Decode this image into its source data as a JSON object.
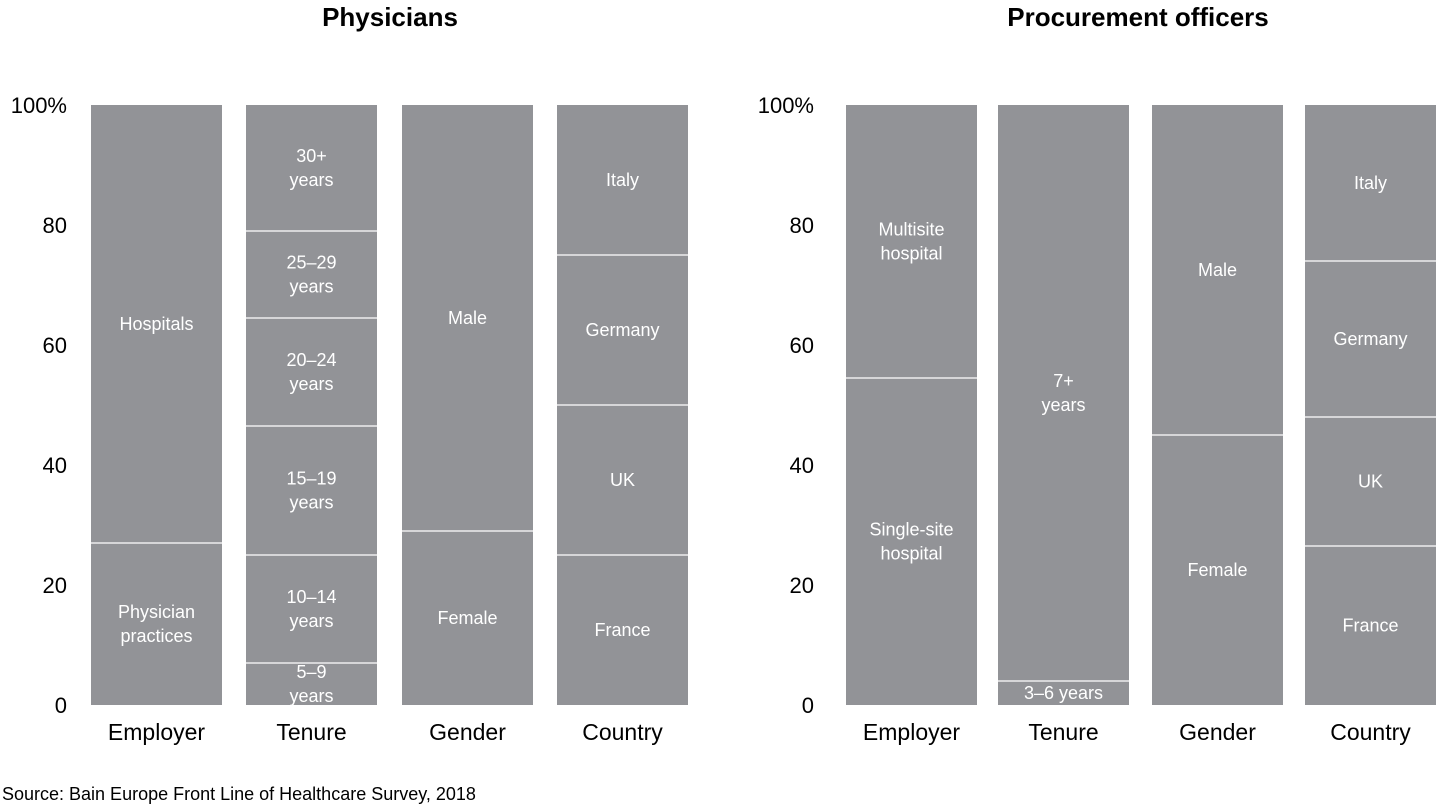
{
  "source": "Source: Bain Europe Front Line of Healthcare Survey, 2018",
  "colors": {
    "bar": "#929397",
    "divider": "#ffffff",
    "text_on_bar": "#ffffff"
  },
  "chart_data": [
    {
      "type": "bar",
      "stacked": true,
      "title": "Physicians",
      "ylim": [
        0,
        100
      ],
      "yticks": [
        "0",
        "20",
        "40",
        "60",
        "80",
        "100%"
      ],
      "categories": [
        "Employer",
        "Tenure",
        "Gender",
        "Country"
      ],
      "stacks": [
        {
          "category": "Employer",
          "segments": [
            {
              "label": "Physician practices",
              "value": 27
            },
            {
              "label": "Hospitals",
              "value": 73
            }
          ]
        },
        {
          "category": "Tenure",
          "segments": [
            {
              "label": "5–9 years",
              "value": 7
            },
            {
              "label": "10–14 years",
              "value": 18
            },
            {
              "label": "15–19 years",
              "value": 21.5
            },
            {
              "label": "20–24 years",
              "value": 18
            },
            {
              "label": "25–29 years",
              "value": 14.5
            },
            {
              "label": "30+ years",
              "value": 21
            }
          ]
        },
        {
          "category": "Gender",
          "segments": [
            {
              "label": "Female",
              "value": 29
            },
            {
              "label": "Male",
              "value": 71
            }
          ]
        },
        {
          "category": "Country",
          "segments": [
            {
              "label": "France",
              "value": 25
            },
            {
              "label": "UK",
              "value": 25
            },
            {
              "label": "Germany",
              "value": 25
            },
            {
              "label": "Italy",
              "value": 25
            }
          ]
        }
      ]
    },
    {
      "type": "bar",
      "stacked": true,
      "title": "Procurement officers",
      "ylim": [
        0,
        100
      ],
      "yticks": [
        "0",
        "20",
        "40",
        "60",
        "80",
        "100%"
      ],
      "categories": [
        "Employer",
        "Tenure",
        "Gender",
        "Country"
      ],
      "stacks": [
        {
          "category": "Employer",
          "segments": [
            {
              "label": "Single-site hospital",
              "value": 54.5
            },
            {
              "label": "Multisite hospital",
              "value": 45.5
            }
          ]
        },
        {
          "category": "Tenure",
          "segments": [
            {
              "label": "3–6 years",
              "value": 4
            },
            {
              "label": "7+ years",
              "value": 96
            }
          ]
        },
        {
          "category": "Gender",
          "segments": [
            {
              "label": "Female",
              "value": 45
            },
            {
              "label": "Male",
              "value": 55
            }
          ]
        },
        {
          "category": "Country",
          "segments": [
            {
              "label": "France",
              "value": 26.5
            },
            {
              "label": "UK",
              "value": 21.5
            },
            {
              "label": "Germany",
              "value": 26
            },
            {
              "label": "Italy",
              "value": 26
            }
          ]
        }
      ]
    }
  ]
}
